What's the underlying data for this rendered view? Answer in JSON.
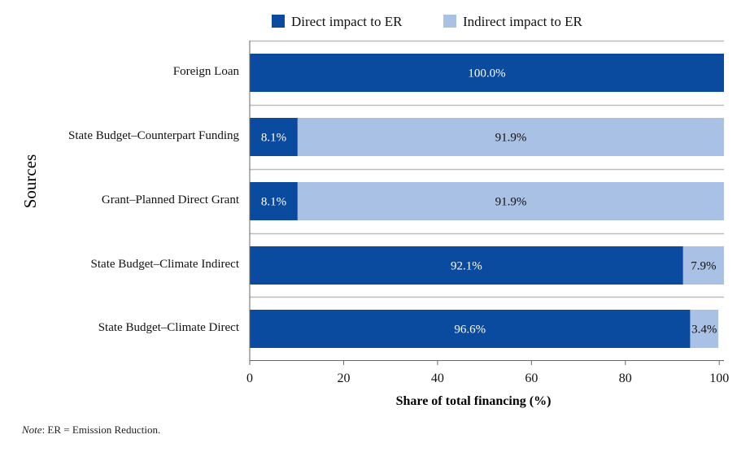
{
  "colors": {
    "direct": "#0a4a9f",
    "indirect": "#a9c1e4",
    "separator": "#bcbcbc",
    "axis": "#666666"
  },
  "note": {
    "label": "Note",
    "text": ": ER = Emission Reduction."
  },
  "chart_data": {
    "type": "bar",
    "orientation": "horizontal",
    "stacked": true,
    "title": "",
    "xlabel": "Share of total financing (%)",
    "ylabel": "Sources",
    "xlim": [
      0,
      101
    ],
    "xticks": [
      "0",
      "20",
      "40",
      "60",
      "80",
      "100"
    ],
    "xtick_values": [
      0,
      20,
      40,
      60,
      80,
      100
    ],
    "legend_position": "top",
    "categories": [
      "Foreign Loan",
      "State Budget–Counterpart Funding",
      "Grant–Planned Direct Grant",
      "State Budget–Climate Indirect",
      "State Budget–Climate Direct"
    ],
    "series": [
      {
        "name": "Direct impact to ER",
        "values": [
          100.0,
          8.1,
          8.1,
          92.1,
          96.6
        ],
        "display_values": [
          101.0,
          10.2,
          10.2,
          92.3,
          93.8
        ],
        "labels": [
          "100.0%",
          "8.1%",
          "8.1%",
          "92.1%",
          "96.6%"
        ]
      },
      {
        "name": "Indirect impact to ER",
        "values": [
          0.0,
          91.9,
          91.9,
          7.9,
          3.4
        ],
        "display_values": [
          0.0,
          90.8,
          90.8,
          8.7,
          6.0
        ],
        "labels": [
          "",
          "91.9%",
          "91.9%",
          "7.9%",
          "3.4%"
        ]
      }
    ]
  }
}
